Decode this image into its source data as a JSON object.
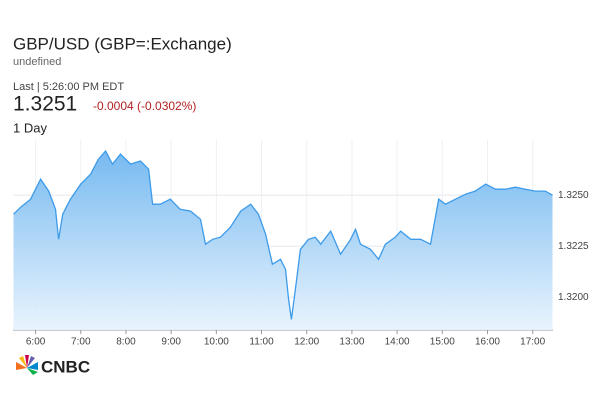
{
  "chart_data": {
    "type": "area",
    "title": "GBP/USD (GBP=:Exchange)",
    "subtitle": "undefined",
    "last_updated": "Last | 5:26:00 PM EDT",
    "price": "1.3251",
    "change": "-0.0004 (-0.0302%)",
    "range_label": "1 Day",
    "brand": "CNBC",
    "color": "#3d9be9",
    "change_color": "#b22222",
    "grid": true,
    "x": [
      5.51,
      5.67,
      5.89,
      6.11,
      6.29,
      6.44,
      6.51,
      6.6,
      6.77,
      7.0,
      7.22,
      7.39,
      7.55,
      7.7,
      7.88,
      8.1,
      8.32,
      8.5,
      8.59,
      8.76,
      8.98,
      9.2,
      9.43,
      9.65,
      9.76,
      9.92,
      10.09,
      10.31,
      10.54,
      10.76,
      10.93,
      11.09,
      11.24,
      11.42,
      11.53,
      11.6,
      11.66,
      11.75,
      11.86,
      12.04,
      12.19,
      12.31,
      12.53,
      12.75,
      12.97,
      13.08,
      13.19,
      13.41,
      13.59,
      13.74,
      13.96,
      14.08,
      14.3,
      14.52,
      14.74,
      14.92,
      15.07,
      15.29,
      15.52,
      15.73,
      15.96,
      16.18,
      16.4,
      16.62,
      16.84,
      17.06,
      17.28,
      17.44
    ],
    "values": [
      1.32407,
      1.32441,
      1.3248,
      1.32578,
      1.3252,
      1.32431,
      1.32284,
      1.32407,
      1.3248,
      1.32554,
      1.32603,
      1.32676,
      1.32716,
      1.32652,
      1.32701,
      1.32652,
      1.32667,
      1.32627,
      1.32456,
      1.32456,
      1.3248,
      1.32431,
      1.32422,
      1.32382,
      1.3226,
      1.32284,
      1.32294,
      1.32343,
      1.32422,
      1.32456,
      1.32407,
      1.32309,
      1.32162,
      1.32186,
      1.32137,
      1.3199,
      1.31892,
      1.32039,
      1.32235,
      1.32284,
      1.32294,
      1.3226,
      1.32324,
      1.32211,
      1.32284,
      1.32333,
      1.3226,
      1.32235,
      1.32186,
      1.3226,
      1.32294,
      1.32324,
      1.32284,
      1.32284,
      1.3226,
      1.3248,
      1.32456,
      1.3248,
      1.32505,
      1.3252,
      1.32554,
      1.32529,
      1.32529,
      1.32539,
      1.32529,
      1.3252,
      1.3252,
      1.325
    ],
    "xlim": [
      5.5,
      17.45
    ],
    "xticks": [
      {
        "value": 6,
        "label": "6:00"
      },
      {
        "value": 7,
        "label": "7:00"
      },
      {
        "value": 8,
        "label": "8:00"
      },
      {
        "value": 9,
        "label": "9:00"
      },
      {
        "value": 10,
        "label": "10:00"
      },
      {
        "value": 11,
        "label": "11:00"
      },
      {
        "value": 12,
        "label": "12:00"
      },
      {
        "value": 13,
        "label": "13:00"
      },
      {
        "value": 14,
        "label": "14:00"
      },
      {
        "value": 15,
        "label": "15:00"
      },
      {
        "value": 16,
        "label": "16:00"
      },
      {
        "value": 17,
        "label": "17:00"
      }
    ],
    "ylim": [
      1.3184,
      1.3277
    ],
    "yticks": [
      {
        "value": 1.32,
        "label": "1.3200"
      },
      1.3225,
      {
        "value": 1.325,
        "label": "1.3250"
      }
    ]
  }
}
